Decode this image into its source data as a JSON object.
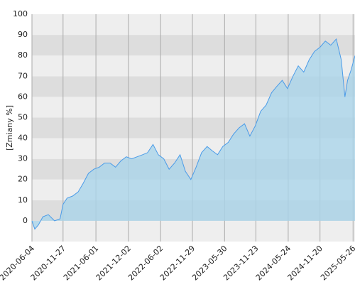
{
  "chart_data": {
    "type": "area",
    "y_label": "[Zmiany %]",
    "x": [
      "2020-06-04",
      "2020-06-20",
      "2020-07-10",
      "2020-08-05",
      "2020-09-05",
      "2020-10-10",
      "2020-11-10",
      "2020-11-27",
      "2020-12-20",
      "2021-01-20",
      "2021-02-20",
      "2021-03-20",
      "2021-04-20",
      "2021-05-20",
      "2021-06-20",
      "2021-07-20",
      "2021-08-20",
      "2021-09-20",
      "2021-10-20",
      "2021-11-20",
      "2021-12-20",
      "2022-01-20",
      "2022-02-20",
      "2022-03-20",
      "2022-04-20",
      "2022-05-20",
      "2022-06-20",
      "2022-07-20",
      "2022-08-20",
      "2022-09-20",
      "2022-10-20",
      "2022-11-20",
      "2022-12-20",
      "2023-01-20",
      "2023-02-20",
      "2023-03-20",
      "2023-04-20",
      "2023-05-20",
      "2023-06-20",
      "2023-07-20",
      "2023-08-20",
      "2023-09-20",
      "2023-10-20",
      "2023-11-20",
      "2023-12-20",
      "2024-01-20",
      "2024-02-20",
      "2024-03-20",
      "2024-04-20",
      "2024-05-20",
      "2024-06-20",
      "2024-07-20",
      "2024-08-20",
      "2024-09-20",
      "2024-10-20",
      "2024-11-20",
      "2024-12-20",
      "2025-01-20",
      "2025-02-20",
      "2025-03-20",
      "2025-04-10",
      "2025-04-25",
      "2025-05-15",
      "2025-06-06"
    ],
    "values": [
      0,
      -4,
      -2,
      2,
      3,
      0,
      1,
      8,
      11,
      12,
      14,
      18,
      23,
      25,
      26,
      28,
      28,
      26,
      29,
      31,
      30,
      31,
      32,
      33,
      37,
      32,
      30,
      25,
      28,
      32,
      24,
      20,
      26,
      33,
      36,
      34,
      32,
      36,
      38,
      42,
      45,
      47,
      41,
      46,
      53,
      56,
      62,
      65,
      68,
      64,
      70,
      75,
      72,
      78,
      82,
      84,
      87,
      85,
      88,
      78,
      60,
      68,
      73,
      80
    ],
    "color": "#4a9be8",
    "fill": "#aad4ea",
    "xlim": [
      "2020-06-04",
      "2025-06-06"
    ],
    "xticks": [
      "2020-06-04",
      "2020-11-27",
      "2021-06-01",
      "2021-12-02",
      "2022-06-02",
      "2022-11-29",
      "2023-05-30",
      "2023-11-23",
      "2024-05-24",
      "2024-11-20",
      "2025-05-26"
    ],
    "ylim": [
      -10,
      100
    ],
    "yticks": [
      0,
      10,
      20,
      30,
      40,
      50,
      60,
      70,
      80,
      90,
      100
    ],
    "grid": true
  }
}
